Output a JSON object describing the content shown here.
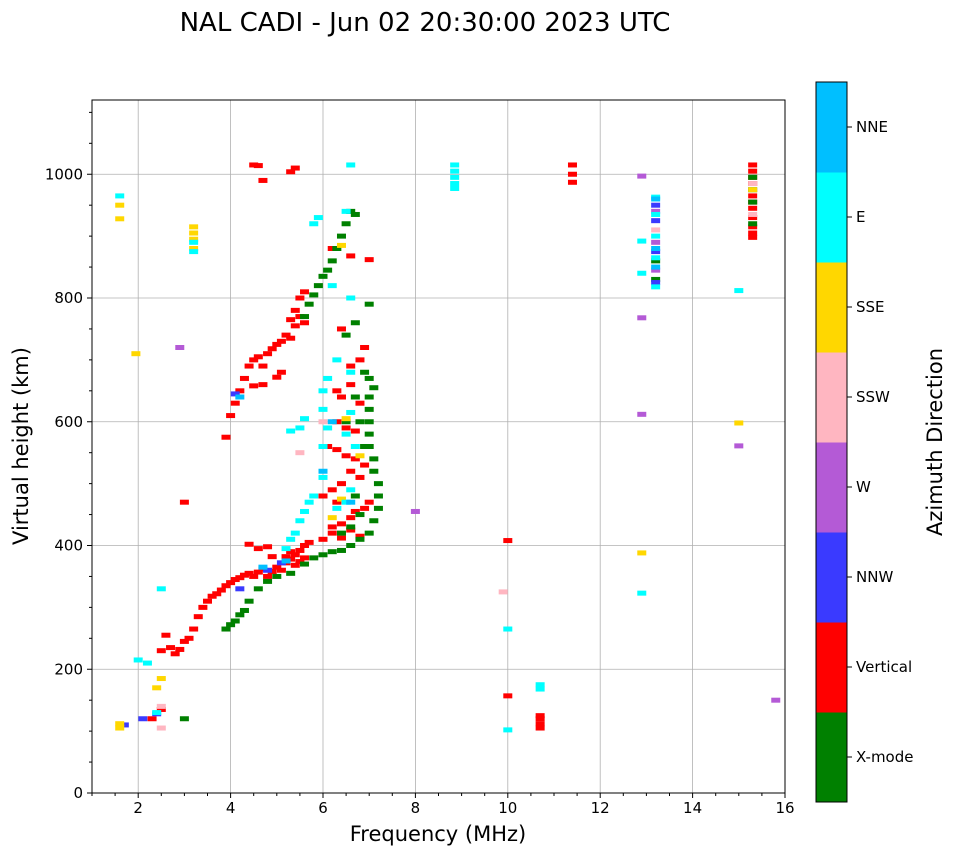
{
  "chart_data": {
    "type": "scatter",
    "title": "NAL CADI - Jun 02 20:30:00 2023 UTC",
    "xlabel": "Frequency (MHz)",
    "ylabel": "Virtual height (km)",
    "xlim": [
      1,
      16
    ],
    "ylim": [
      0,
      1120
    ],
    "xticks": [
      2,
      4,
      6,
      8,
      10,
      12,
      14,
      16
    ],
    "yticks": [
      0,
      200,
      400,
      600,
      800,
      1000
    ],
    "grid": true,
    "colorbar": {
      "label": "Azimuth Direction",
      "categories": [
        {
          "name": "X-mode",
          "color": "#008000"
        },
        {
          "name": "Vertical",
          "color": "#ff0000"
        },
        {
          "name": "NNW",
          "color": "#3a3aff"
        },
        {
          "name": "W",
          "color": "#b45ad6"
        },
        {
          "name": "SSW",
          "color": "#ffb6c1"
        },
        {
          "name": "SSE",
          "color": "#ffd700"
        },
        {
          "name": "E",
          "color": "#00ffff"
        },
        {
          "name": "NNE",
          "color": "#00bfff"
        }
      ]
    },
    "series": [
      {
        "name": "Vertical",
        "points": [
          [
            2.3,
            120
          ],
          [
            2.5,
            135
          ],
          [
            2.5,
            230
          ],
          [
            2.6,
            255
          ],
          [
            2.7,
            235
          ],
          [
            2.8,
            225
          ],
          [
            2.9,
            232
          ],
          [
            3.0,
            245
          ],
          [
            3.1,
            250
          ],
          [
            3.2,
            265
          ],
          [
            3.3,
            285
          ],
          [
            3.4,
            300
          ],
          [
            3.5,
            310
          ],
          [
            3.6,
            318
          ],
          [
            3.7,
            322
          ],
          [
            3.8,
            328
          ],
          [
            3.9,
            335
          ],
          [
            4.0,
            340
          ],
          [
            4.1,
            345
          ],
          [
            4.2,
            348
          ],
          [
            4.3,
            352
          ],
          [
            4.4,
            355
          ],
          [
            4.5,
            350
          ],
          [
            4.6,
            357
          ],
          [
            4.7,
            362
          ],
          [
            4.8,
            350
          ],
          [
            4.9,
            358
          ],
          [
            5.0,
            365
          ],
          [
            5.1,
            360
          ],
          [
            5.2,
            372
          ],
          [
            5.3,
            378
          ],
          [
            5.4,
            385
          ],
          [
            5.5,
            392
          ],
          [
            5.6,
            400
          ],
          [
            5.7,
            405
          ],
          [
            4.4,
            402
          ],
          [
            4.6,
            395
          ],
          [
            4.8,
            398
          ],
          [
            4.9,
            382
          ],
          [
            5.2,
            382
          ],
          [
            5.3,
            390
          ],
          [
            5.4,
            368
          ],
          [
            5.5,
            374
          ],
          [
            5.6,
            380
          ],
          [
            6.0,
            410
          ],
          [
            6.2,
            420
          ],
          [
            6.4,
            412
          ],
          [
            6.6,
            425
          ],
          [
            6.8,
            415
          ],
          [
            3.9,
            575
          ],
          [
            4.0,
            610
          ],
          [
            4.1,
            630
          ],
          [
            4.2,
            650
          ],
          [
            4.3,
            670
          ],
          [
            4.4,
            690
          ],
          [
            4.5,
            700
          ],
          [
            4.6,
            705
          ],
          [
            4.7,
            690
          ],
          [
            4.8,
            710
          ],
          [
            4.9,
            718
          ],
          [
            5.0,
            725
          ],
          [
            5.1,
            730
          ],
          [
            5.2,
            740
          ],
          [
            5.3,
            735
          ],
          [
            5.4,
            755
          ],
          [
            5.5,
            770
          ],
          [
            5.6,
            760
          ],
          [
            5.3,
            765
          ],
          [
            5.4,
            780
          ],
          [
            5.5,
            800
          ],
          [
            5.6,
            810
          ],
          [
            4.5,
            658
          ],
          [
            4.7,
            660
          ],
          [
            5.1,
            680
          ],
          [
            5.0,
            672
          ],
          [
            6.3,
            650
          ],
          [
            6.4,
            640
          ],
          [
            6.6,
            660
          ],
          [
            6.8,
            630
          ],
          [
            6.3,
            600
          ],
          [
            6.5,
            590
          ],
          [
            6.7,
            585
          ],
          [
            6.1,
            560
          ],
          [
            6.3,
            555
          ],
          [
            6.5,
            545
          ],
          [
            6.7,
            540
          ],
          [
            6.9,
            530
          ],
          [
            6.6,
            520
          ],
          [
            6.8,
            510
          ],
          [
            6.4,
            500
          ],
          [
            6.2,
            490
          ],
          [
            6.0,
            480
          ],
          [
            6.3,
            470
          ],
          [
            6.9,
            460
          ],
          [
            7.0,
            470
          ],
          [
            6.7,
            455
          ],
          [
            6.6,
            445
          ],
          [
            6.4,
            435
          ],
          [
            6.2,
            430
          ],
          [
            6.6,
            690
          ],
          [
            6.8,
            700
          ],
          [
            6.9,
            720
          ],
          [
            6.4,
            750
          ],
          [
            4.5,
            1015
          ],
          [
            4.6,
            1014
          ],
          [
            4.7,
            990
          ],
          [
            5.3,
            1004
          ],
          [
            5.4,
            1010
          ],
          [
            7.0,
            862
          ],
          [
            6.6,
            868
          ],
          [
            6.2,
            880
          ],
          [
            10.0,
            408
          ],
          [
            10.0,
            157
          ],
          [
            10.7,
            112
          ],
          [
            10.7,
            120
          ],
          [
            10.7,
            105
          ],
          [
            10.7,
            125
          ],
          [
            11.4,
            1015
          ],
          [
            11.4,
            1000
          ],
          [
            11.4,
            987
          ],
          [
            15.3,
            1015
          ],
          [
            15.3,
            1005
          ],
          [
            15.3,
            995
          ],
          [
            15.3,
            985
          ],
          [
            15.3,
            965
          ],
          [
            15.3,
            955
          ],
          [
            15.3,
            945
          ],
          [
            15.3,
            930
          ],
          [
            15.3,
            915
          ],
          [
            15.3,
            905
          ],
          [
            15.3,
            898
          ],
          [
            3.0,
            470
          ]
        ]
      },
      {
        "name": "X-mode",
        "points": [
          [
            3.0,
            120
          ],
          [
            3.9,
            265
          ],
          [
            4.0,
            272
          ],
          [
            4.1,
            278
          ],
          [
            4.2,
            288
          ],
          [
            4.3,
            295
          ],
          [
            4.4,
            310
          ],
          [
            4.6,
            330
          ],
          [
            4.8,
            342
          ],
          [
            5.0,
            350
          ],
          [
            5.3,
            355
          ],
          [
            5.6,
            370
          ],
          [
            5.8,
            380
          ],
          [
            6.0,
            385
          ],
          [
            6.2,
            390
          ],
          [
            6.4,
            392
          ],
          [
            6.6,
            400
          ],
          [
            6.8,
            410
          ],
          [
            7.0,
            420
          ],
          [
            7.1,
            440
          ],
          [
            7.2,
            460
          ],
          [
            7.2,
            480
          ],
          [
            7.2,
            500
          ],
          [
            7.1,
            520
          ],
          [
            7.1,
            540
          ],
          [
            7.0,
            560
          ],
          [
            7.0,
            580
          ],
          [
            7.0,
            600
          ],
          [
            7.0,
            620
          ],
          [
            7.0,
            640
          ],
          [
            7.1,
            655
          ],
          [
            7.0,
            670
          ],
          [
            6.8,
            600
          ],
          [
            6.9,
            560
          ],
          [
            6.7,
            480
          ],
          [
            6.8,
            450
          ],
          [
            6.6,
            430
          ],
          [
            6.4,
            420
          ],
          [
            5.6,
            770
          ],
          [
            5.7,
            790
          ],
          [
            5.8,
            805
          ],
          [
            5.9,
            820
          ],
          [
            6.0,
            835
          ],
          [
            6.1,
            845
          ],
          [
            6.2,
            860
          ],
          [
            6.3,
            880
          ],
          [
            6.4,
            900
          ],
          [
            6.5,
            920
          ],
          [
            6.6,
            940
          ],
          [
            6.7,
            935
          ],
          [
            7.0,
            790
          ],
          [
            6.7,
            760
          ],
          [
            6.5,
            740
          ],
          [
            6.9,
            680
          ],
          [
            6.7,
            640
          ],
          [
            6.5,
            600
          ],
          [
            15.3,
            995
          ],
          [
            15.3,
            975
          ],
          [
            15.3,
            955
          ],
          [
            15.3,
            920
          ],
          [
            13.2,
            860
          ],
          [
            13.2,
            830
          ]
        ]
      },
      {
        "name": "NNW",
        "points": [
          [
            1.7,
            110
          ],
          [
            2.1,
            120
          ],
          [
            2.4,
            128
          ],
          [
            4.1,
            645
          ],
          [
            4.8,
            360
          ],
          [
            5.1,
            372
          ],
          [
            4.2,
            330
          ],
          [
            13.2,
            950
          ],
          [
            13.2,
            925
          ],
          [
            13.2,
            875
          ],
          [
            13.2,
            825
          ]
        ]
      },
      {
        "name": "W",
        "points": [
          [
            2.9,
            720
          ],
          [
            8.0,
            455
          ],
          [
            12.9,
            997
          ],
          [
            12.9,
            768
          ],
          [
            12.9,
            612
          ],
          [
            15.0,
            561
          ],
          [
            15.8,
            150
          ],
          [
            13.2,
            940
          ],
          [
            13.2,
            890
          ],
          [
            13.2,
            845
          ]
        ]
      },
      {
        "name": "SSW",
        "points": [
          [
            2.5,
            140
          ],
          [
            2.5,
            105
          ],
          [
            5.5,
            550
          ],
          [
            9.9,
            325
          ],
          [
            15.3,
            985
          ],
          [
            15.3,
            935
          ],
          [
            13.2,
            910
          ],
          [
            6.0,
            600
          ]
        ]
      },
      {
        "name": "SSE",
        "points": [
          [
            1.6,
            112
          ],
          [
            1.6,
            105
          ],
          [
            1.6,
            950
          ],
          [
            1.6,
            928
          ],
          [
            2.4,
            170
          ],
          [
            2.5,
            185
          ],
          [
            1.95,
            710
          ],
          [
            3.2,
            915
          ],
          [
            3.2,
            905
          ],
          [
            3.2,
            895
          ],
          [
            3.2,
            880
          ],
          [
            6.4,
            885
          ],
          [
            6.8,
            545
          ],
          [
            6.4,
            475
          ],
          [
            6.2,
            445
          ],
          [
            12.9,
            388
          ],
          [
            15.0,
            598
          ],
          [
            15.3,
            975
          ],
          [
            6.5,
            605
          ]
        ]
      },
      {
        "name": "E",
        "points": [
          [
            1.6,
            965
          ],
          [
            2.0,
            215
          ],
          [
            2.2,
            210
          ],
          [
            2.4,
            130
          ],
          [
            2.5,
            330
          ],
          [
            3.2,
            890
          ],
          [
            3.2,
            875
          ],
          [
            5.3,
            585
          ],
          [
            5.5,
            590
          ],
          [
            5.6,
            605
          ],
          [
            5.8,
            480
          ],
          [
            5.7,
            470
          ],
          [
            5.6,
            455
          ],
          [
            5.5,
            440
          ],
          [
            5.4,
            420
          ],
          [
            5.3,
            410
          ],
          [
            5.2,
            395
          ],
          [
            6.0,
            510
          ],
          [
            6.0,
            560
          ],
          [
            6.1,
            590
          ],
          [
            6.0,
            620
          ],
          [
            6.0,
            650
          ],
          [
            6.1,
            670
          ],
          [
            6.6,
            1015
          ],
          [
            6.5,
            940
          ],
          [
            6.2,
            820
          ],
          [
            6.6,
            800
          ],
          [
            5.8,
            920
          ],
          [
            5.9,
            930
          ],
          [
            6.3,
            700
          ],
          [
            6.6,
            680
          ],
          [
            6.6,
            615
          ],
          [
            6.5,
            580
          ],
          [
            6.7,
            560
          ],
          [
            6.5,
            470
          ],
          [
            6.3,
            460
          ],
          [
            6.6,
            490
          ],
          [
            8.85,
            1015
          ],
          [
            8.85,
            1005
          ],
          [
            8.85,
            995
          ],
          [
            8.85,
            985
          ],
          [
            8.85,
            977
          ],
          [
            10.0,
            265
          ],
          [
            10.0,
            102
          ],
          [
            10.7,
            175
          ],
          [
            10.7,
            168
          ],
          [
            12.9,
            892
          ],
          [
            12.9,
            840
          ],
          [
            12.9,
            323
          ],
          [
            15.0,
            812
          ],
          [
            13.2,
            963
          ],
          [
            13.2,
            935
          ],
          [
            13.2,
            900
          ],
          [
            13.2,
            865
          ],
          [
            13.2,
            818
          ]
        ]
      },
      {
        "name": "NNE",
        "points": [
          [
            4.2,
            640
          ],
          [
            4.7,
            365
          ],
          [
            5.2,
            375
          ],
          [
            6.0,
            520
          ],
          [
            6.2,
            600
          ],
          [
            6.6,
            470
          ],
          [
            13.2,
            960
          ],
          [
            13.2,
            880
          ],
          [
            13.2,
            850
          ]
        ]
      }
    ]
  }
}
